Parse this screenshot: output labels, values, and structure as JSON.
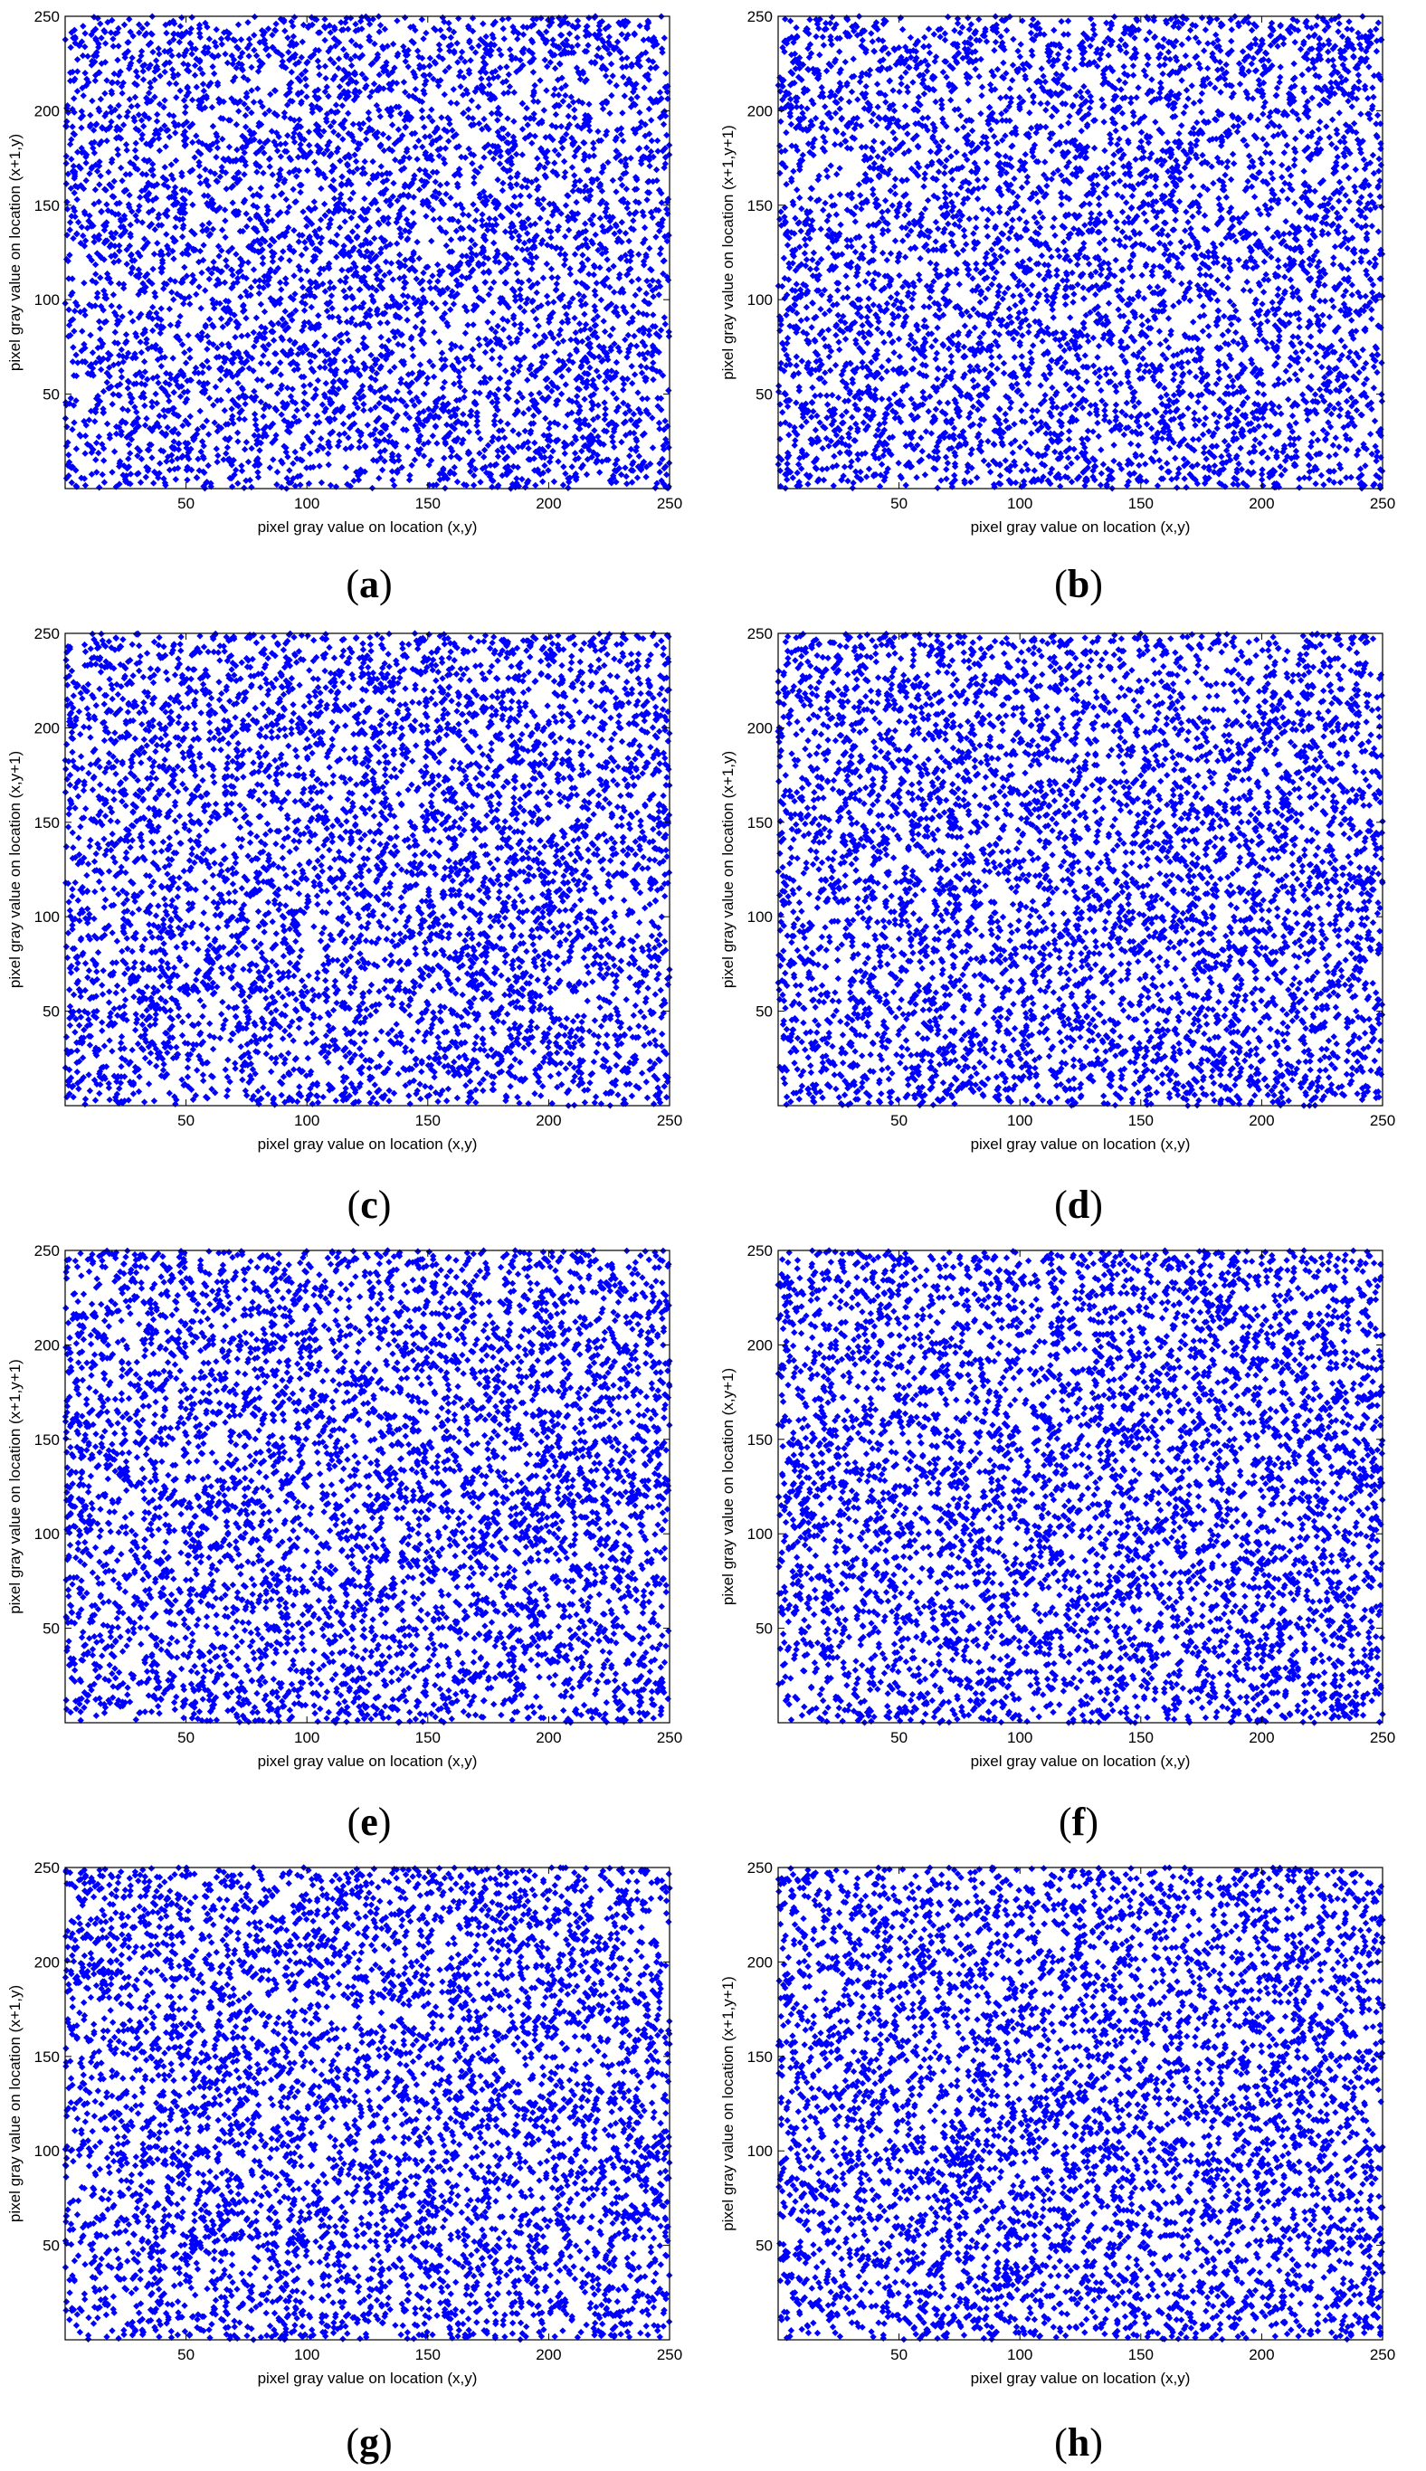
{
  "chart_data": [
    {
      "type": "scatter",
      "caption_letter": "a",
      "xlabel": "pixel gray value on location (x,y)",
      "ylabel": "pixel gray value on location (x+1,y)",
      "xlim": [
        0,
        250
      ],
      "ylim": [
        0,
        250
      ],
      "xticks": [
        50,
        100,
        150,
        200,
        250
      ],
      "yticks": [
        50,
        100,
        150,
        200,
        250
      ],
      "point_color": "#0000ff",
      "grid": false,
      "seed": 11,
      "point_count": 5000
    },
    {
      "type": "scatter",
      "caption_letter": "b",
      "xlabel": "pixel gray value on location (x,y)",
      "ylabel": "pixel gray value on location (x+1,y+1)",
      "xlim": [
        0,
        250
      ],
      "ylim": [
        0,
        250
      ],
      "xticks": [
        50,
        100,
        150,
        200,
        250
      ],
      "yticks": [
        50,
        100,
        150,
        200,
        250
      ],
      "point_color": "#0000ff",
      "grid": false,
      "seed": 23,
      "point_count": 5000
    },
    {
      "type": "scatter",
      "caption_letter": "c",
      "xlabel": "pixel gray value on location (x,y)",
      "ylabel": "pixel gray value on location (x,y+1)",
      "xlim": [
        0,
        250
      ],
      "ylim": [
        0,
        250
      ],
      "xticks": [
        50,
        100,
        150,
        200,
        250
      ],
      "yticks": [
        50,
        100,
        150,
        200,
        250
      ],
      "point_color": "#0000ff",
      "grid": false,
      "seed": 37,
      "point_count": 5000
    },
    {
      "type": "scatter",
      "caption_letter": "d",
      "xlabel": "pixel gray value on location (x,y)",
      "ylabel": "pixel gray value on location (x+1,y)",
      "xlim": [
        0,
        250
      ],
      "ylim": [
        0,
        250
      ],
      "xticks": [
        50,
        100,
        150,
        200,
        250
      ],
      "yticks": [
        50,
        100,
        150,
        200,
        250
      ],
      "point_color": "#0000ff",
      "grid": false,
      "seed": 41,
      "point_count": 5000
    },
    {
      "type": "scatter",
      "caption_letter": "e",
      "xlabel": "pixel gray value on location (x,y)",
      "ylabel": "pixel gray value on location (x+1,y+1)",
      "xlim": [
        0,
        250
      ],
      "ylim": [
        0,
        250
      ],
      "xticks": [
        50,
        100,
        150,
        200,
        250
      ],
      "yticks": [
        50,
        100,
        150,
        200,
        250
      ],
      "point_color": "#0000ff",
      "grid": false,
      "seed": 53,
      "point_count": 5000
    },
    {
      "type": "scatter",
      "caption_letter": "f",
      "xlabel": "pixel gray value on location (x,y)",
      "ylabel": "pixel gray value on location (x,y+1)",
      "xlim": [
        0,
        250
      ],
      "ylim": [
        0,
        250
      ],
      "xticks": [
        50,
        100,
        150,
        200,
        250
      ],
      "yticks": [
        50,
        100,
        150,
        200,
        250
      ],
      "point_color": "#0000ff",
      "grid": false,
      "seed": 67,
      "point_count": 5000
    },
    {
      "type": "scatter",
      "caption_letter": "g",
      "xlabel": "pixel gray value on location (x,y)",
      "ylabel": "pixel gray value on location (x+1,y)",
      "xlim": [
        0,
        250
      ],
      "ylim": [
        0,
        250
      ],
      "xticks": [
        50,
        100,
        150,
        200,
        250
      ],
      "yticks": [
        50,
        100,
        150,
        200,
        250
      ],
      "point_color": "#0000ff",
      "grid": false,
      "seed": 79,
      "point_count": 5000
    },
    {
      "type": "scatter",
      "caption_letter": "h",
      "xlabel": "pixel gray value on location (x,y)",
      "ylabel": "pixel gray value on location (x+1,y+1)",
      "xlim": [
        0,
        250
      ],
      "ylim": [
        0,
        250
      ],
      "xticks": [
        50,
        100,
        150,
        200,
        250
      ],
      "yticks": [
        50,
        100,
        150,
        200,
        250
      ],
      "point_color": "#0000ff",
      "grid": false,
      "seed": 97,
      "point_count": 5000
    }
  ]
}
